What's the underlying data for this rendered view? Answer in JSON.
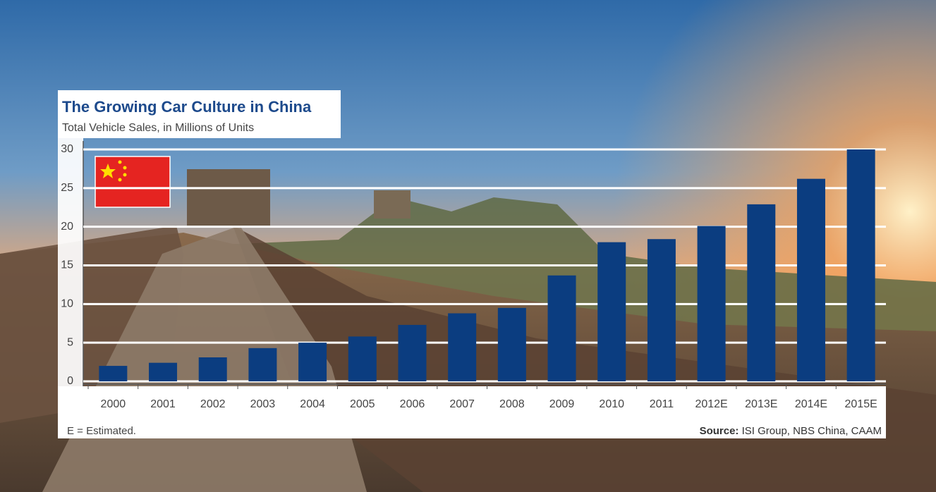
{
  "chart_data": {
    "type": "bar",
    "title": "The Growing Car Culture in China",
    "subtitle": "Total Vehicle Sales, in Millions of Units",
    "note": "E = Estimated.",
    "source_label": "Source:",
    "source": "ISI Group, NBS China, CAAM",
    "categories": [
      "2000",
      "2001",
      "2002",
      "2003",
      "2004",
      "2005",
      "2006",
      "2007",
      "2008",
      "2009",
      "2010",
      "2011",
      "2012E",
      "2013E",
      "2014E",
      "2015E"
    ],
    "values": [
      2.0,
      2.4,
      3.1,
      4.3,
      5.0,
      5.8,
      7.3,
      8.8,
      9.5,
      13.7,
      18.0,
      18.4,
      20.1,
      22.9,
      26.2,
      30.0
    ],
    "color": "#0b3d80",
    "ylim": [
      0,
      30
    ],
    "yticks": [
      0,
      5,
      10,
      15,
      20,
      25,
      30
    ],
    "grid": true
  }
}
